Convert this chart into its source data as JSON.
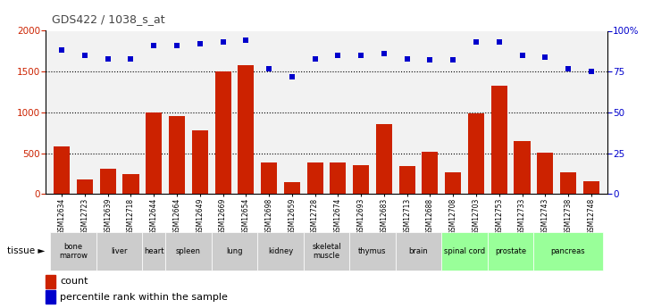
{
  "title": "GDS422 / 1038_s_at",
  "samples": [
    "GSM12634",
    "GSM12723",
    "GSM12639",
    "GSM12718",
    "GSM12644",
    "GSM12664",
    "GSM12649",
    "GSM12669",
    "GSM12654",
    "GSM12698",
    "GSM12659",
    "GSM12728",
    "GSM12674",
    "GSM12693",
    "GSM12683",
    "GSM12713",
    "GSM12688",
    "GSM12708",
    "GSM12703",
    "GSM12753",
    "GSM12733",
    "GSM12743",
    "GSM12738",
    "GSM12748"
  ],
  "counts": [
    580,
    180,
    310,
    240,
    1000,
    950,
    775,
    1500,
    1580,
    390,
    145,
    390,
    390,
    355,
    855,
    340,
    520,
    265,
    985,
    1330,
    645,
    510,
    265,
    155
  ],
  "percentiles": [
    88,
    85,
    83,
    83,
    91,
    91,
    92,
    93,
    94,
    77,
    72,
    83,
    85,
    85,
    86,
    83,
    82,
    82,
    93,
    93,
    85,
    84,
    77,
    75
  ],
  "tissues": [
    {
      "name": "bone\nmarrow",
      "start": 0,
      "end": 2,
      "color": "#cccccc"
    },
    {
      "name": "liver",
      "start": 2,
      "end": 4,
      "color": "#cccccc"
    },
    {
      "name": "heart",
      "start": 4,
      "end": 5,
      "color": "#cccccc"
    },
    {
      "name": "spleen",
      "start": 5,
      "end": 7,
      "color": "#cccccc"
    },
    {
      "name": "lung",
      "start": 7,
      "end": 9,
      "color": "#cccccc"
    },
    {
      "name": "kidney",
      "start": 9,
      "end": 11,
      "color": "#cccccc"
    },
    {
      "name": "skeletal\nmuscle",
      "start": 11,
      "end": 13,
      "color": "#cccccc"
    },
    {
      "name": "thymus",
      "start": 13,
      "end": 15,
      "color": "#cccccc"
    },
    {
      "name": "brain",
      "start": 15,
      "end": 17,
      "color": "#cccccc"
    },
    {
      "name": "spinal cord",
      "start": 17,
      "end": 19,
      "color": "#99ff99"
    },
    {
      "name": "prostate",
      "start": 19,
      "end": 21,
      "color": "#99ff99"
    },
    {
      "name": "pancreas",
      "start": 21,
      "end": 24,
      "color": "#99ff99"
    }
  ],
  "bar_color": "#cc2200",
  "dot_color": "#0000cc",
  "ylim_left": [
    0,
    2000
  ],
  "ylim_right": [
    0,
    100
  ],
  "yticks_left": [
    0,
    500,
    1000,
    1500,
    2000
  ],
  "yticks_right": [
    0,
    25,
    50,
    75,
    100
  ],
  "fig_width": 7.31,
  "fig_height": 3.45,
  "dpi": 100
}
